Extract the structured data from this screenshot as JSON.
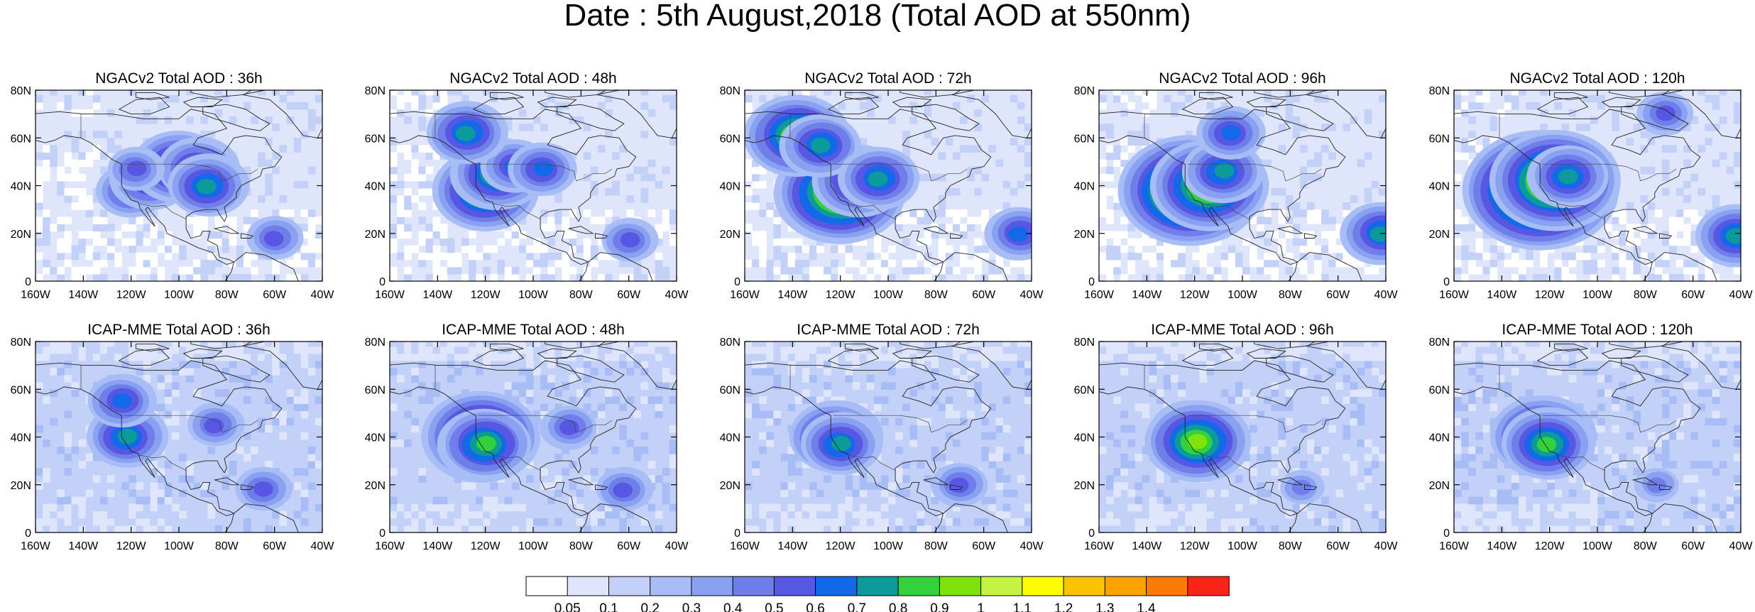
{
  "title": "Date : 5th August,2018 (Total AOD at 550nm)",
  "panels": [
    {
      "title": "NGACv2 Total AOD : 36h",
      "plumes": [
        {
          "lon": -120,
          "lat": 38,
          "level": 7
        },
        {
          "lon": -112,
          "lat": 43,
          "level": 8
        },
        {
          "lon": -100,
          "lat": 48,
          "level": 9
        },
        {
          "lon": -92,
          "lat": 47,
          "level": 8
        },
        {
          "lon": -118,
          "lat": 47,
          "level": 6
        },
        {
          "lon": -88,
          "lat": 40,
          "level": 8
        },
        {
          "lon": -60,
          "lat": 18,
          "level": 6
        }
      ]
    },
    {
      "title": "NGACv2 Total AOD : 48h",
      "plumes": [
        {
          "lon": -120,
          "lat": 38,
          "level": 10
        },
        {
          "lon": -115,
          "lat": 45,
          "level": 9
        },
        {
          "lon": -108,
          "lat": 48,
          "level": 7
        },
        {
          "lon": -96,
          "lat": 47,
          "level": 7
        },
        {
          "lon": -128,
          "lat": 62,
          "level": 8
        },
        {
          "lon": -60,
          "lat": 17,
          "level": 6
        }
      ]
    },
    {
      "title": "NGACv2 Total AOD : 72h",
      "plumes": [
        {
          "lon": -120,
          "lat": 37,
          "level": 12
        },
        {
          "lon": -112,
          "lat": 42,
          "level": 9
        },
        {
          "lon": -138,
          "lat": 61,
          "level": 10
        },
        {
          "lon": -128,
          "lat": 57,
          "level": 8
        },
        {
          "lon": -104,
          "lat": 43,
          "level": 8
        },
        {
          "lon": -45,
          "lat": 20,
          "level": 7
        }
      ]
    },
    {
      "title": "NGACv2 Total AOD : 96h",
      "plumes": [
        {
          "lon": -122,
          "lat": 38,
          "level": 13
        },
        {
          "lon": -114,
          "lat": 40,
          "level": 11
        },
        {
          "lon": -108,
          "lat": 46,
          "level": 8
        },
        {
          "lon": -42,
          "lat": 20,
          "level": 8
        },
        {
          "lon": -105,
          "lat": 62,
          "level": 7
        }
      ]
    },
    {
      "title": "NGACv2 Total AOD : 120h",
      "plumes": [
        {
          "lon": -124,
          "lat": 38,
          "level": 14
        },
        {
          "lon": -118,
          "lat": 42,
          "level": 12
        },
        {
          "lon": -112,
          "lat": 44,
          "level": 8
        },
        {
          "lon": -42,
          "lat": 19,
          "level": 8
        },
        {
          "lon": -72,
          "lat": 70,
          "level": 6
        }
      ]
    },
    {
      "title": "ICAP-MME Total AOD : 36h",
      "plumes": [
        {
          "lon": -122,
          "lat": 40,
          "level": 8
        },
        {
          "lon": -124,
          "lat": 55,
          "level": 7
        },
        {
          "lon": -85,
          "lat": 45,
          "level": 6
        },
        {
          "lon": -65,
          "lat": 18,
          "level": 6
        }
      ]
    },
    {
      "title": "ICAP-MME Total AOD : 48h",
      "plumes": [
        {
          "lon": -122,
          "lat": 40,
          "level": 11
        },
        {
          "lon": -120,
          "lat": 37,
          "level": 9
        },
        {
          "lon": -85,
          "lat": 44,
          "level": 6
        },
        {
          "lon": -62,
          "lat": 18,
          "level": 6
        }
      ]
    },
    {
      "title": "ICAP-MME Total AOD : 72h",
      "plumes": [
        {
          "lon": -122,
          "lat": 40,
          "level": 9
        },
        {
          "lon": -120,
          "lat": 37,
          "level": 8
        },
        {
          "lon": -70,
          "lat": 20,
          "level": 6
        }
      ]
    },
    {
      "title": "ICAP-MME Total AOD : 96h",
      "plumes": [
        {
          "lon": -122,
          "lat": 42,
          "level": 8
        },
        {
          "lon": -119,
          "lat": 38,
          "level": 10
        },
        {
          "lon": -75,
          "lat": 19,
          "level": 5
        }
      ]
    },
    {
      "title": "ICAP-MME Total AOD : 120h",
      "plumes": [
        {
          "lon": -123,
          "lat": 40,
          "level": 10
        },
        {
          "lon": -121,
          "lat": 37,
          "level": 9
        },
        {
          "lon": -75,
          "lat": 20,
          "level": 5
        }
      ]
    }
  ],
  "lon_ticks": [
    "160W",
    "140W",
    "120W",
    "100W",
    "80W",
    "60W",
    "40W"
  ],
  "lat_ticks": [
    "0",
    "20N",
    "40N",
    "60N",
    "80N"
  ],
  "colorbar": {
    "colors": [
      "#ffffff",
      "#dfe6fb",
      "#c3d0f8",
      "#a8bcf6",
      "#8aa0f1",
      "#6f7ee8",
      "#5757e3",
      "#1469e9",
      "#0c9a9b",
      "#33d23c",
      "#7fe20a",
      "#c4f341",
      "#fdfd00",
      "#fcc400",
      "#fca300",
      "#fb7b06",
      "#f82418"
    ],
    "labels": [
      "0.05",
      "0.1",
      "0.2",
      "0.3",
      "0.4",
      "0.5",
      "0.6",
      "0.7",
      "0.8",
      "0.9",
      "1",
      "1.1",
      "1.2",
      "1.3",
      "1.4"
    ]
  }
}
